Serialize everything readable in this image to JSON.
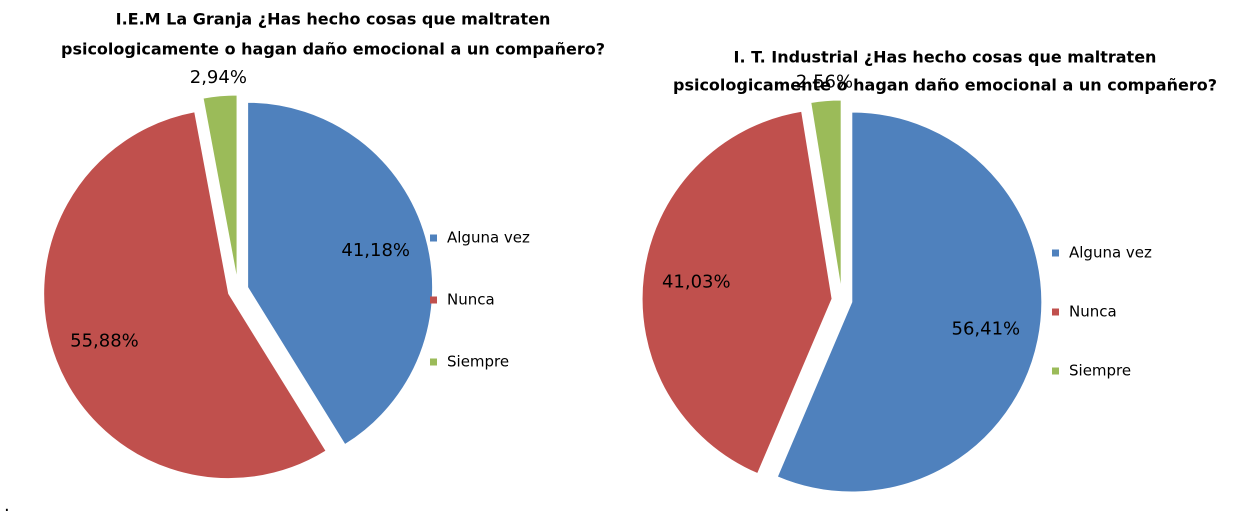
{
  "chart_data": [
    {
      "type": "pie",
      "title": [
        "I.E.M La Granja ¿Has hecho cosas que maltraten",
        "psicologicamente  o hagan daño emocional a un compañero?"
      ],
      "categories": [
        "Alguna vez",
        "Nunca",
        "Siempre"
      ],
      "values": [
        41.18,
        55.88,
        2.94
      ],
      "value_labels": [
        "41,18%",
        "55,88%",
        "2,94%"
      ],
      "colors": [
        "#4f81bd",
        "#c0504d",
        "#9bbb59"
      ],
      "legend": "right"
    },
    {
      "type": "pie",
      "title": [
        "I. T. Industrial ¿Has hecho cosas que maltraten",
        "psicologicamente  o hagan daño emocional a un compañero?"
      ],
      "categories": [
        "Alguna vez",
        "Nunca",
        "Siempre"
      ],
      "values": [
        56.41,
        41.03,
        2.56
      ],
      "value_labels": [
        "56,41%",
        "41,03%",
        "2,56%"
      ],
      "colors": [
        "#4f81bd",
        "#c0504d",
        "#9bbb59"
      ],
      "legend": "right"
    }
  ],
  "footer": "."
}
